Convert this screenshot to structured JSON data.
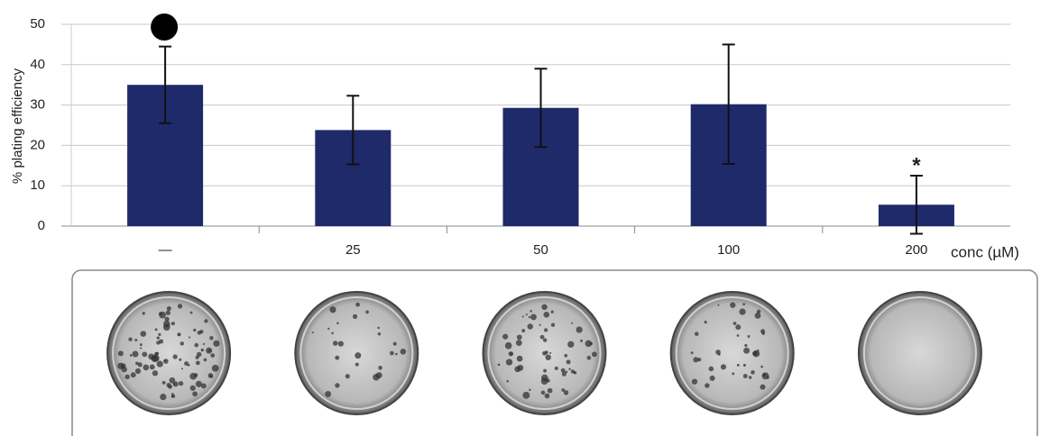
{
  "chart_data": {
    "type": "bar",
    "y_label": "% plating efficiency",
    "x_label": "conc (µM)",
    "categories": [
      "—",
      "25",
      "50",
      "100",
      "200"
    ],
    "values": [
      35,
      23.8,
      29.3,
      30.2,
      5.3
    ],
    "errors": [
      9.5,
      8.5,
      9.7,
      14.8,
      7.2
    ],
    "color": "#1f2a6b",
    "ylim": [
      0,
      50
    ],
    "yticks": [
      0,
      10,
      20,
      30,
      40,
      50
    ],
    "grid": true,
    "annotations": [
      {
        "text": "*",
        "category": 4
      }
    ]
  }
}
